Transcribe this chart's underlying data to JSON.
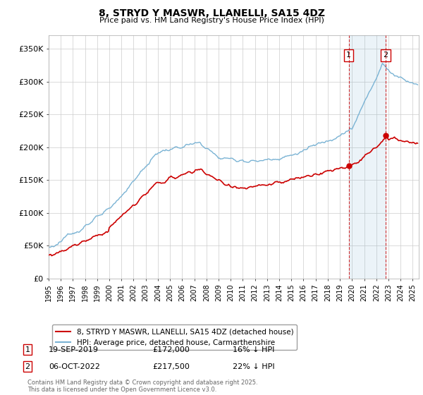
{
  "title": "8, STRYD Y MASWR, LLANELLI, SA15 4DZ",
  "subtitle": "Price paid vs. HM Land Registry's House Price Index (HPI)",
  "ylabel_ticks": [
    "£0",
    "£50K",
    "£100K",
    "£150K",
    "£200K",
    "£250K",
    "£300K",
    "£350K"
  ],
  "ytick_values": [
    0,
    50000,
    100000,
    150000,
    200000,
    250000,
    300000,
    350000
  ],
  "ylim": [
    0,
    370000
  ],
  "xlim_start": 1995.0,
  "xlim_end": 2025.5,
  "hpi_color": "#7ab3d4",
  "price_color": "#cc0000",
  "marker1_date": 2019.72,
  "marker1_price": 172000,
  "marker2_date": 2022.77,
  "marker2_price": 217500,
  "legend_line1": "8, STRYD Y MASWR, LLANELLI, SA15 4DZ (detached house)",
  "legend_line2": "HPI: Average price, detached house, Carmarthenshire",
  "table_row1": [
    "1",
    "19-SEP-2019",
    "£172,000",
    "16% ↓ HPI"
  ],
  "table_row2": [
    "2",
    "06-OCT-2022",
    "£217,500",
    "22% ↓ HPI"
  ],
  "footnote": "Contains HM Land Registry data © Crown copyright and database right 2025.\nThis data is licensed under the Open Government Licence v3.0.",
  "background_color": "#ffffff",
  "grid_color": "#cccccc",
  "fig_width": 6.0,
  "fig_height": 5.6
}
